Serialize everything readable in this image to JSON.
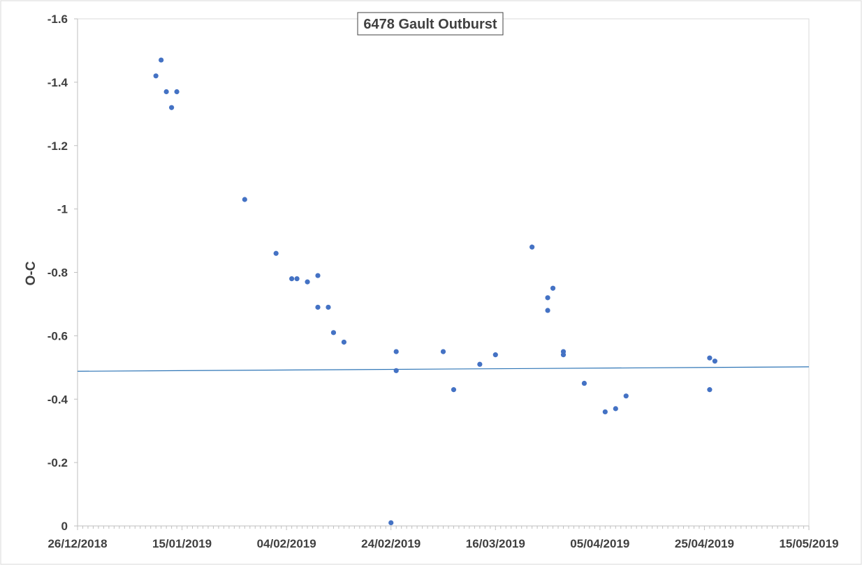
{
  "chart_data": {
    "type": "scatter",
    "title": "6478 Gault Outburst",
    "xlabel": "",
    "ylabel": "O-C",
    "x_axis_type": "date",
    "x_range": [
      "2018-12-26",
      "2019-05-15"
    ],
    "x_tick_labels": [
      "26/12/2018",
      "15/01/2019",
      "04/02/2019",
      "24/02/2019",
      "16/03/2019",
      "05/04/2019",
      "25/04/2019",
      "15/05/2019"
    ],
    "x_ticks": [
      "2018-12-26",
      "2019-01-15",
      "2019-02-04",
      "2019-02-24",
      "2019-03-16",
      "2019-04-05",
      "2019-04-25",
      "2019-05-15"
    ],
    "y_axis_reversed": true,
    "ylim": [
      0,
      -1.6
    ],
    "y_ticks": [
      0,
      -0.2,
      -0.4,
      -0.6,
      -0.8,
      -1,
      -1.2,
      -1.4,
      -1.6
    ],
    "y_tick_labels": [
      "0",
      "-0.2",
      "-0.4",
      "-0.6",
      "-0.8",
      "-1",
      "-1.2",
      "-1.4",
      "-1.6"
    ],
    "grid": false,
    "legend": "none",
    "marker_color": "#4472C4",
    "line_color": "#2E75B6",
    "series": [
      {
        "points": [
          {
            "x": "2019-01-10",
            "y": -1.42
          },
          {
            "x": "2019-01-11",
            "y": -1.47
          },
          {
            "x": "2019-01-12",
            "y": -1.37
          },
          {
            "x": "2019-01-13",
            "y": -1.32
          },
          {
            "x": "2019-01-14",
            "y": -1.37
          },
          {
            "x": "2019-01-27",
            "y": -1.03
          },
          {
            "x": "2019-02-02",
            "y": -0.86
          },
          {
            "x": "2019-02-05",
            "y": -0.78
          },
          {
            "x": "2019-02-06",
            "y": -0.78
          },
          {
            "x": "2019-02-08",
            "y": -0.77
          },
          {
            "x": "2019-02-10",
            "y": -0.79
          },
          {
            "x": "2019-02-10",
            "y": -0.69
          },
          {
            "x": "2019-02-12",
            "y": -0.69
          },
          {
            "x": "2019-02-13",
            "y": -0.61
          },
          {
            "x": "2019-02-15",
            "y": -0.58
          },
          {
            "x": "2019-02-24",
            "y": -0.01
          },
          {
            "x": "2019-02-25",
            "y": -0.55
          },
          {
            "x": "2019-02-25",
            "y": -0.49
          },
          {
            "x": "2019-03-06",
            "y": -0.55
          },
          {
            "x": "2019-03-08",
            "y": -0.43
          },
          {
            "x": "2019-03-13",
            "y": -0.51
          },
          {
            "x": "2019-03-16",
            "y": -0.54
          },
          {
            "x": "2019-03-23",
            "y": -0.88
          },
          {
            "x": "2019-03-26",
            "y": -0.72
          },
          {
            "x": "2019-03-26",
            "y": -0.68
          },
          {
            "x": "2019-03-27",
            "y": -0.75
          },
          {
            "x": "2019-03-29",
            "y": -0.55
          },
          {
            "x": "2019-03-29",
            "y": -0.54
          },
          {
            "x": "2019-04-02",
            "y": -0.45
          },
          {
            "x": "2019-04-06",
            "y": -0.36
          },
          {
            "x": "2019-04-08",
            "y": -0.37
          },
          {
            "x": "2019-04-10",
            "y": -0.41
          },
          {
            "x": "2019-04-26",
            "y": -0.53
          },
          {
            "x": "2019-04-26",
            "y": -0.43
          },
          {
            "x": "2019-04-27",
            "y": -0.52
          }
        ]
      }
    ],
    "trendline": {
      "points": [
        {
          "x": "2018-12-26",
          "y": -0.488
        },
        {
          "x": "2019-05-15",
          "y": -0.502
        }
      ]
    }
  }
}
